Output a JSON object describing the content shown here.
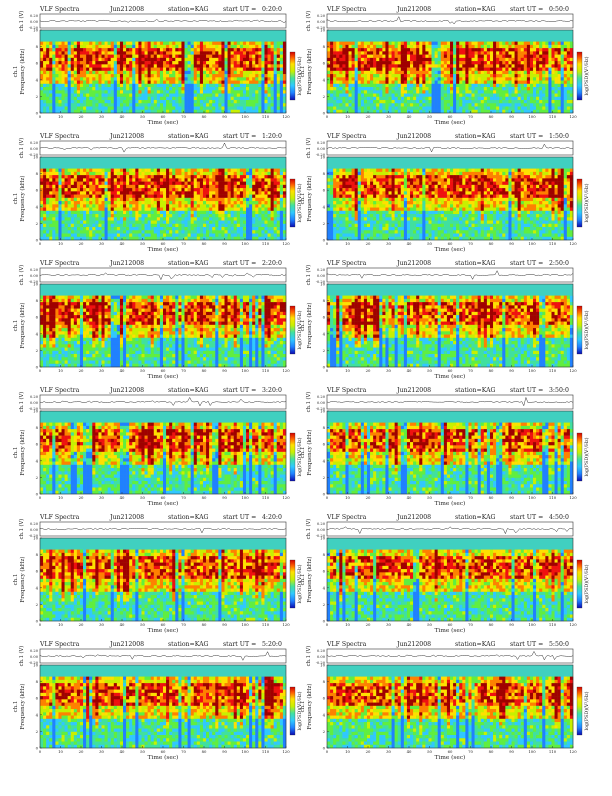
{
  "page": {
    "header_prefix": "VLF Spectra",
    "date": "Jun212008",
    "station": "station=KAG",
    "start_prefix": "start UT =",
    "time_axis_label": "Time (sec)",
    "freq_axis_label": "Frequency (kHz)",
    "ch_label": "ch.1",
    "amp_axis_label": "ch.1 (V)",
    "colorbar_label": "log(PSD)(V²/Hz)"
  },
  "colors": {
    "spectrogram_scale": [
      "#1010c8",
      "#2080ff",
      "#30c8ff",
      "#40e0a0",
      "#60ee40",
      "#c8f000",
      "#ffe000",
      "#ff8000",
      "#f01010",
      "#a00000"
    ],
    "background_band": "#40d0c0",
    "trace": "#333333"
  },
  "chart_data": [
    {
      "type": "heatmap",
      "start_ut": "0:20:0",
      "xlim": [
        0,
        120
      ],
      "ylim": [
        0,
        10
      ],
      "amp_ylim": [
        -0.2,
        0.2
      ],
      "xticks": [
        0,
        10,
        20,
        30,
        40,
        50,
        60,
        70,
        80,
        90,
        100,
        110,
        120
      ],
      "yticks": [
        0,
        2,
        4,
        6,
        8,
        10
      ],
      "amp_ticks": [
        "0.20",
        "0.00",
        "-0.20"
      ]
    },
    {
      "type": "heatmap",
      "start_ut": "0:50:0",
      "xlim": [
        0,
        120
      ],
      "ylim": [
        0,
        10
      ],
      "amp_ylim": [
        -0.2,
        0.2
      ],
      "xticks": [
        0,
        10,
        20,
        30,
        40,
        50,
        60,
        70,
        80,
        90,
        100,
        110,
        120
      ],
      "yticks": [
        0,
        2,
        4,
        6,
        8,
        10
      ],
      "amp_ticks": [
        "0.20",
        "0.00",
        "-0.20"
      ]
    },
    {
      "type": "heatmap",
      "start_ut": "1:20:0",
      "xlim": [
        0,
        120
      ],
      "ylim": [
        0,
        10
      ],
      "amp_ylim": [
        -0.2,
        0.2
      ],
      "xticks": [
        0,
        10,
        20,
        30,
        40,
        50,
        60,
        70,
        80,
        90,
        100,
        110,
        120
      ],
      "yticks": [
        0,
        2,
        4,
        6,
        8,
        10
      ],
      "amp_ticks": [
        "0.20",
        "0.00",
        "-0.20"
      ]
    },
    {
      "type": "heatmap",
      "start_ut": "1:50:0",
      "xlim": [
        0,
        120
      ],
      "ylim": [
        0,
        10
      ],
      "amp_ylim": [
        -0.2,
        0.2
      ],
      "xticks": [
        0,
        10,
        20,
        30,
        40,
        50,
        60,
        70,
        80,
        90,
        100,
        110,
        120
      ],
      "yticks": [
        0,
        2,
        4,
        6,
        8,
        10
      ],
      "amp_ticks": [
        "0.20",
        "0.00",
        "-0.20"
      ]
    },
    {
      "type": "heatmap",
      "start_ut": "2:20:0",
      "xlim": [
        0,
        120
      ],
      "ylim": [
        0,
        10
      ],
      "amp_ylim": [
        -0.2,
        0.2
      ],
      "xticks": [
        0,
        10,
        20,
        30,
        40,
        50,
        60,
        70,
        80,
        90,
        100,
        110,
        120
      ],
      "yticks": [
        0,
        2,
        4,
        6,
        8,
        10
      ],
      "amp_ticks": [
        "0.20",
        "0.00",
        "-0.20"
      ]
    },
    {
      "type": "heatmap",
      "start_ut": "2:50:0",
      "xlim": [
        0,
        120
      ],
      "ylim": [
        0,
        10
      ],
      "amp_ylim": [
        -0.2,
        0.2
      ],
      "xticks": [
        0,
        10,
        20,
        30,
        40,
        50,
        60,
        70,
        80,
        90,
        100,
        110,
        120
      ],
      "yticks": [
        0,
        2,
        4,
        6,
        8,
        10
      ],
      "amp_ticks": [
        "0.20",
        "0.00",
        "-0.20"
      ]
    },
    {
      "type": "heatmap",
      "start_ut": "3:20:0",
      "xlim": [
        0,
        120
      ],
      "ylim": [
        0,
        10
      ],
      "amp_ylim": [
        -0.2,
        0.2
      ],
      "xticks": [
        0,
        10,
        20,
        30,
        40,
        50,
        60,
        70,
        80,
        90,
        100,
        110,
        120
      ],
      "yticks": [
        0,
        2,
        4,
        6,
        8,
        10
      ],
      "amp_ticks": [
        "0.20",
        "0.00",
        "-0.20"
      ]
    },
    {
      "type": "heatmap",
      "start_ut": "3:50:0",
      "xlim": [
        0,
        120
      ],
      "ylim": [
        0,
        10
      ],
      "amp_ylim": [
        -0.2,
        0.2
      ],
      "xticks": [
        0,
        10,
        20,
        30,
        40,
        50,
        60,
        70,
        80,
        90,
        100,
        110,
        120
      ],
      "yticks": [
        0,
        2,
        4,
        6,
        8,
        10
      ],
      "amp_ticks": [
        "0.20",
        "0.00",
        "-0.20"
      ]
    },
    {
      "type": "heatmap",
      "start_ut": "4:20:0",
      "xlim": [
        0,
        120
      ],
      "ylim": [
        0,
        10
      ],
      "amp_ylim": [
        -0.2,
        0.2
      ],
      "xticks": [
        0,
        10,
        20,
        30,
        40,
        50,
        60,
        70,
        80,
        90,
        100,
        110,
        120
      ],
      "yticks": [
        0,
        2,
        4,
        6,
        8,
        10
      ],
      "amp_ticks": [
        "0.20",
        "0.00",
        "-0.20"
      ]
    },
    {
      "type": "heatmap",
      "start_ut": "4:50:0",
      "xlim": [
        0,
        120
      ],
      "ylim": [
        0,
        10
      ],
      "amp_ylim": [
        -0.2,
        0.2
      ],
      "xticks": [
        0,
        10,
        20,
        30,
        40,
        50,
        60,
        70,
        80,
        90,
        100,
        110,
        120
      ],
      "yticks": [
        0,
        2,
        4,
        6,
        8,
        10
      ],
      "amp_ticks": [
        "0.20",
        "0.00",
        "-0.20"
      ]
    },
    {
      "type": "heatmap",
      "start_ut": "5:20:0",
      "xlim": [
        0,
        120
      ],
      "ylim": [
        0,
        10
      ],
      "amp_ylim": [
        -0.2,
        0.2
      ],
      "xticks": [
        0,
        10,
        20,
        30,
        40,
        50,
        60,
        70,
        80,
        90,
        100,
        110,
        120
      ],
      "yticks": [
        0,
        2,
        4,
        6,
        8,
        10
      ],
      "amp_ticks": [
        "0.20",
        "0.00",
        "-0.20"
      ]
    },
    {
      "type": "heatmap",
      "start_ut": "5:50:0",
      "xlim": [
        0,
        120
      ],
      "ylim": [
        0,
        10
      ],
      "amp_ylim": [
        -0.2,
        0.2
      ],
      "xticks": [
        0,
        10,
        20,
        30,
        40,
        50,
        60,
        70,
        80,
        90,
        100,
        110,
        120
      ],
      "yticks": [
        0,
        2,
        4,
        6,
        8,
        10
      ],
      "amp_ticks": [
        "0.20",
        "0.00",
        "-0.20"
      ]
    }
  ]
}
